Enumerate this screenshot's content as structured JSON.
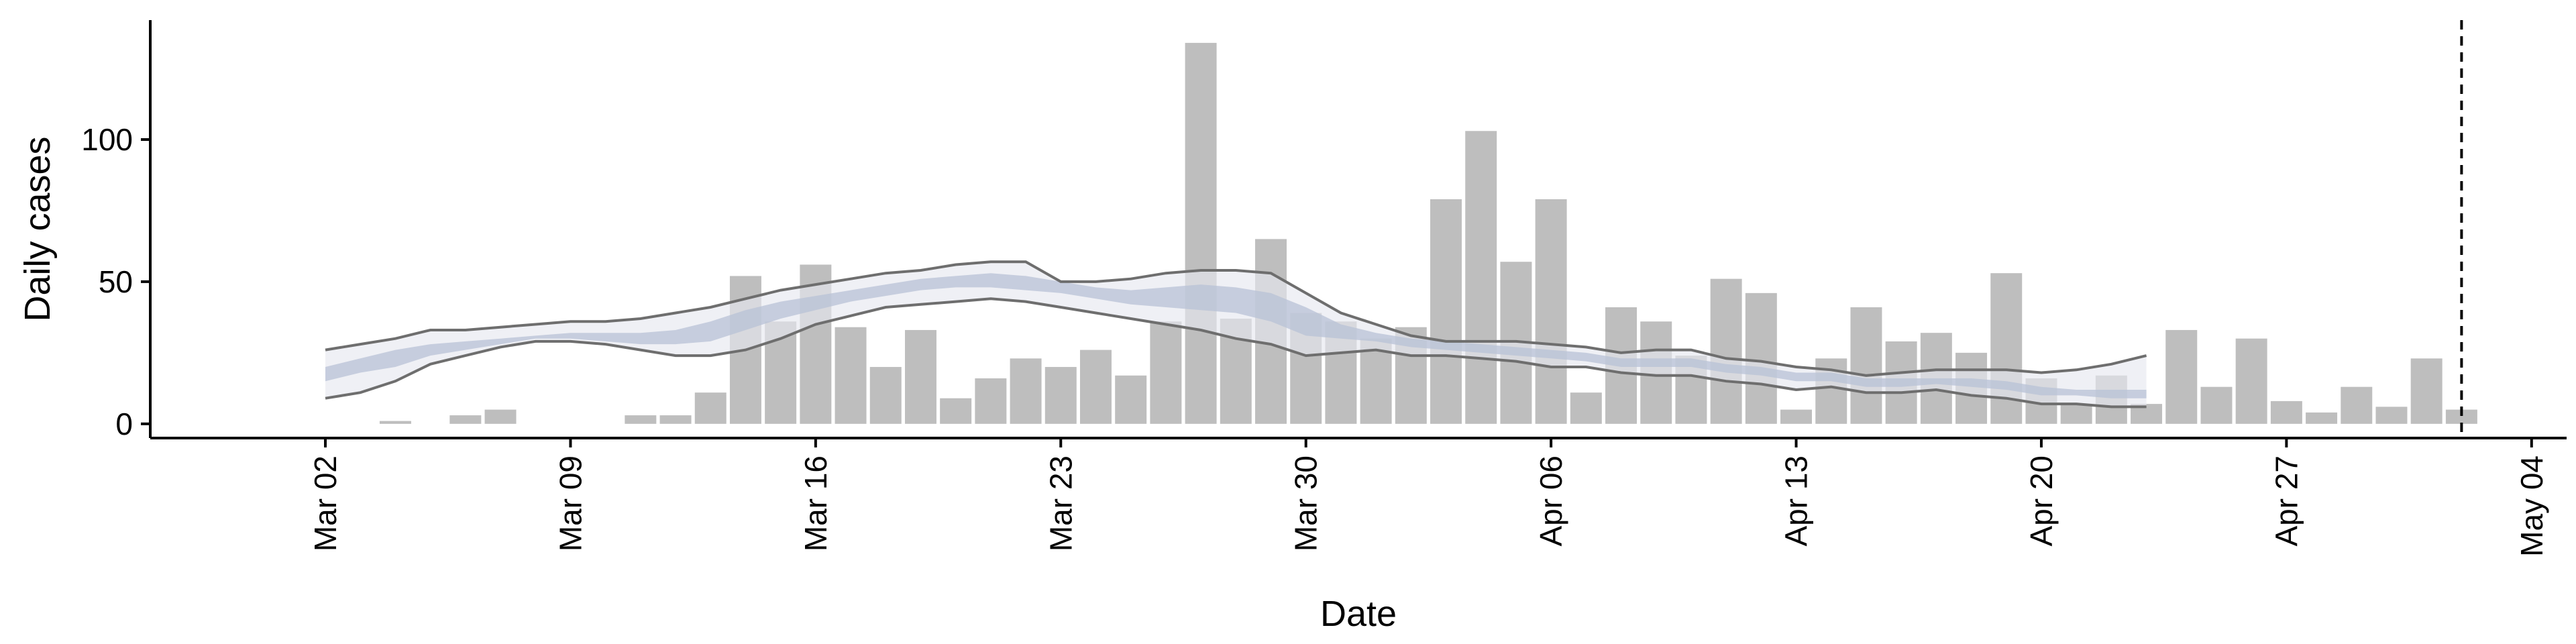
{
  "chart_data": {
    "type": "bar",
    "title": "",
    "xlabel": "Date",
    "ylabel": "Daily cases",
    "ylim": [
      -5,
      142
    ],
    "y_ticks": [
      0,
      50,
      100
    ],
    "x_tick_labels": [
      "Mar 02",
      "Mar 09",
      "Mar 16",
      "Mar 23",
      "Mar 30",
      "Apr 06",
      "Apr 13",
      "Apr 20",
      "Apr 27",
      "May 04"
    ],
    "x_tick_dates": [
      "2020-03-02",
      "2020-03-09",
      "2020-03-16",
      "2020-03-23",
      "2020-03-30",
      "2020-04-06",
      "2020-04-13",
      "2020-04-20",
      "2020-04-27",
      "2020-05-04"
    ],
    "x_range": [
      "2020-02-26",
      "2020-05-05"
    ],
    "reference_line": {
      "date": "2020-05-02",
      "style": "dashed"
    },
    "colors": {
      "bars": "#bebebe",
      "band_outer": "#e6e8f0",
      "band_inner": "#b8c2d6",
      "ci_lines": "#6e6e6e",
      "axes": "#000000"
    },
    "series": [
      {
        "name": "",
        "type": "bar",
        "dates": [
          "2020-03-02",
          "2020-03-03",
          "2020-03-04",
          "2020-03-05",
          "2020-03-06",
          "2020-03-07",
          "2020-03-08",
          "2020-03-09",
          "2020-03-10",
          "2020-03-11",
          "2020-03-12",
          "2020-03-13",
          "2020-03-14",
          "2020-03-15",
          "2020-03-16",
          "2020-03-17",
          "2020-03-18",
          "2020-03-19",
          "2020-03-20",
          "2020-03-21",
          "2020-03-22",
          "2020-03-23",
          "2020-03-24",
          "2020-03-25",
          "2020-03-26",
          "2020-03-27",
          "2020-03-28",
          "2020-03-29",
          "2020-03-30",
          "2020-03-31",
          "2020-04-01",
          "2020-04-02",
          "2020-04-03",
          "2020-04-04",
          "2020-04-05",
          "2020-04-06",
          "2020-04-07",
          "2020-04-08",
          "2020-04-09",
          "2020-04-10",
          "2020-04-11",
          "2020-04-12",
          "2020-04-13",
          "2020-04-14",
          "2020-04-15",
          "2020-04-16",
          "2020-04-17",
          "2020-04-18",
          "2020-04-19",
          "2020-04-20",
          "2020-04-21",
          "2020-04-22",
          "2020-04-23",
          "2020-04-24",
          "2020-04-25",
          "2020-04-26",
          "2020-04-27",
          "2020-04-28",
          "2020-04-29",
          "2020-04-30",
          "2020-05-01",
          "2020-05-02"
        ],
        "values": [
          0,
          0,
          1,
          0,
          3,
          5,
          0,
          0,
          0,
          3,
          3,
          11,
          52,
          36,
          56,
          34,
          20,
          33,
          9,
          16,
          23,
          20,
          26,
          17,
          36,
          134,
          37,
          65,
          39,
          36,
          30,
          34,
          79,
          103,
          57,
          79,
          11,
          41,
          36,
          24,
          51,
          46,
          5,
          23,
          41,
          29,
          32,
          25,
          53,
          16,
          7,
          17,
          7,
          33,
          13,
          30,
          8,
          4,
          13,
          6,
          23,
          5
        ]
      },
      {
        "name": "",
        "type": "band",
        "dates": [
          "2020-03-02",
          "2020-03-03",
          "2020-03-04",
          "2020-03-05",
          "2020-03-06",
          "2020-03-07",
          "2020-03-08",
          "2020-03-09",
          "2020-03-10",
          "2020-03-11",
          "2020-03-12",
          "2020-03-13",
          "2020-03-14",
          "2020-03-15",
          "2020-03-16",
          "2020-03-17",
          "2020-03-18",
          "2020-03-19",
          "2020-03-20",
          "2020-03-21",
          "2020-03-22",
          "2020-03-23",
          "2020-03-24",
          "2020-03-25",
          "2020-03-26",
          "2020-03-27",
          "2020-03-28",
          "2020-03-29",
          "2020-03-30",
          "2020-03-31",
          "2020-04-01",
          "2020-04-02",
          "2020-04-03",
          "2020-04-04",
          "2020-04-05",
          "2020-04-06",
          "2020-04-07",
          "2020-04-08",
          "2020-04-09",
          "2020-04-10",
          "2020-04-11",
          "2020-04-12",
          "2020-04-13",
          "2020-04-14",
          "2020-04-15",
          "2020-04-16",
          "2020-04-17",
          "2020-04-18",
          "2020-04-19",
          "2020-04-20",
          "2020-04-21",
          "2020-04-22",
          "2020-04-23"
        ],
        "lower_90": [
          9,
          11,
          15,
          21,
          24,
          27,
          29,
          29,
          28,
          26,
          24,
          24,
          26,
          30,
          35,
          38,
          41,
          42,
          43,
          44,
          43,
          41,
          39,
          37,
          35,
          33,
          30,
          28,
          24,
          25,
          26,
          24,
          24,
          23,
          22,
          20,
          20,
          18,
          17,
          17,
          15,
          14,
          12,
          13,
          11,
          11,
          12,
          10,
          9,
          7,
          7,
          6,
          6
        ],
        "upper_90": [
          26,
          28,
          30,
          33,
          33,
          34,
          35,
          36,
          36,
          37,
          39,
          41,
          44,
          47,
          49,
          51,
          53,
          54,
          56,
          57,
          57,
          50,
          50,
          51,
          53,
          54,
          54,
          53,
          46,
          39,
          35,
          31,
          29,
          29,
          29,
          28,
          27,
          25,
          26,
          26,
          23,
          22,
          20,
          19,
          17,
          18,
          19,
          19,
          19,
          18,
          19,
          21,
          24
        ],
        "lower_50": [
          15,
          18,
          20,
          24,
          26,
          28,
          30,
          30,
          29,
          28,
          28,
          29,
          33,
          37,
          40,
          43,
          45,
          47,
          48,
          48,
          47,
          46,
          44,
          42,
          41,
          40,
          39,
          36,
          31,
          30,
          29,
          27,
          26,
          25,
          24,
          23,
          22,
          20,
          20,
          20,
          18,
          17,
          15,
          15,
          13,
          13,
          14,
          13,
          12,
          10,
          10,
          9,
          9
        ],
        "upper_50": [
          20,
          23,
          26,
          28,
          29,
          30,
          31,
          32,
          32,
          32,
          33,
          36,
          40,
          43,
          45,
          47,
          49,
          51,
          52,
          53,
          52,
          50,
          48,
          47,
          48,
          49,
          48,
          46,
          41,
          35,
          32,
          30,
          29,
          28,
          27,
          26,
          25,
          23,
          23,
          23,
          21,
          20,
          18,
          18,
          16,
          16,
          16,
          16,
          15,
          13,
          12,
          12,
          12
        ]
      }
    ]
  }
}
